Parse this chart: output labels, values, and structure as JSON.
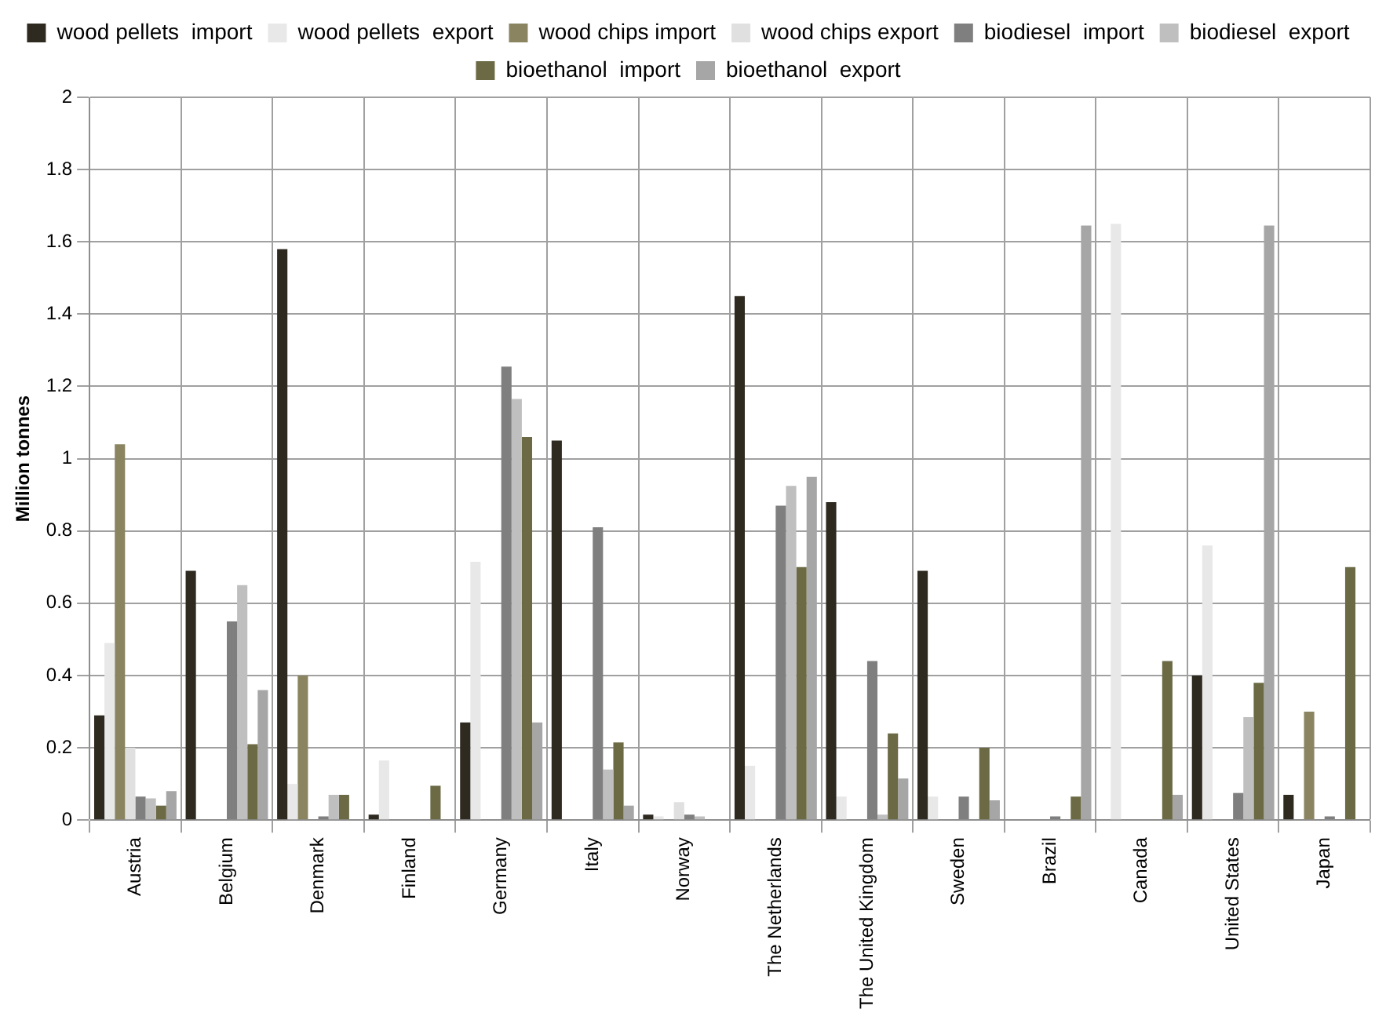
{
  "chart_data": {
    "type": "bar",
    "ylabel": "Million tonnes",
    "categories": [
      "Austria",
      "Belgium",
      "Denmark",
      "Finland",
      "Germany",
      "Italy",
      "Norway",
      "The Netherlands",
      "The United Kingdom",
      "Sweden",
      "Brazil",
      "Canada",
      "United States",
      "Japan"
    ],
    "series": [
      {
        "name": "wood pellets  import",
        "color": "#2f2a20",
        "values": [
          0.29,
          0.69,
          1.58,
          0.015,
          0.27,
          1.05,
          0.015,
          1.45,
          0.88,
          0.69,
          0,
          0,
          0.4,
          0.07
        ]
      },
      {
        "name": "wood pellets  export",
        "color": "#e8e8e8",
        "values": [
          0.49,
          0,
          0.1,
          0.165,
          0.715,
          0,
          0.01,
          0.15,
          0.065,
          0.065,
          0,
          1.65,
          0.76,
          0
        ]
      },
      {
        "name": "wood chips import",
        "color": "#8a8560",
        "values": [
          1.04,
          0,
          0.4,
          0,
          0,
          0,
          0,
          0,
          0,
          0,
          0,
          0,
          0,
          0.3
        ]
      },
      {
        "name": "wood chips export",
        "color": "#e0e0e0",
        "values": [
          0.2,
          0,
          0,
          0,
          0,
          0,
          0.05,
          0,
          0,
          0,
          0,
          0,
          0,
          0
        ]
      },
      {
        "name": "biodiesel  import",
        "color": "#7f7f7f",
        "values": [
          0.065,
          0.55,
          0.01,
          0,
          1.255,
          0.81,
          0.015,
          0.87,
          0.44,
          0.065,
          0.01,
          0,
          0.075,
          0.01
        ]
      },
      {
        "name": "biodiesel  export",
        "color": "#bfbfbf",
        "values": [
          0.06,
          0.65,
          0.07,
          0,
          1.165,
          0.14,
          0.01,
          0.925,
          0.015,
          0,
          0,
          0,
          0.285,
          0
        ]
      },
      {
        "name": "bioethanol  import",
        "color": "#6b6a45",
        "values": [
          0.04,
          0.21,
          0.07,
          0.095,
          1.06,
          0.215,
          0,
          0.7,
          0.24,
          0.2,
          0.065,
          0.44,
          0.38,
          0.7
        ]
      },
      {
        "name": "bioethanol  export",
        "color": "#a6a6a6",
        "values": [
          0.08,
          0.36,
          0,
          0,
          0.27,
          0.04,
          0,
          0.95,
          0.115,
          0.055,
          1.645,
          0.07,
          1.645,
          0
        ]
      }
    ],
    "ylim": [
      0,
      2
    ],
    "yticks": [
      0,
      0.2,
      0.4,
      0.6,
      0.8,
      1,
      1.2,
      1.4,
      1.6,
      1.8,
      2
    ],
    "grid": true,
    "legend": "top"
  }
}
